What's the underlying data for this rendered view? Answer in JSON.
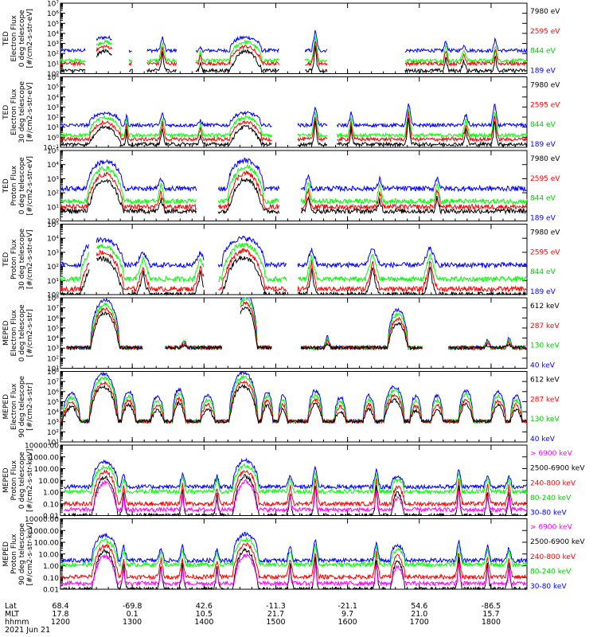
{
  "colors": {
    "blue": "#0000ff",
    "red": "#ff0000",
    "green": "#00ff00",
    "black": "#000000",
    "magenta": "#ff00ff",
    "axis": "#000000",
    "background": "#ffffff"
  },
  "footer": {
    "row_labels": [
      "Lat",
      "MLT",
      "hhmm",
      "2021 Jun 21"
    ],
    "columns": [
      {
        "lat": "68.4",
        "mlt": "17.8",
        "hhmm": "1200"
      },
      {
        "lat": "-69.8",
        "mlt": "0.1",
        "hhmm": "1300"
      },
      {
        "lat": "42.6",
        "mlt": "10.5",
        "hhmm": "1400"
      },
      {
        "lat": "-11.3",
        "mlt": "21.7",
        "hhmm": "1500"
      },
      {
        "lat": "-21.1",
        "mlt": "9.7",
        "hhmm": "1600"
      },
      {
        "lat": "54.6",
        "mlt": "21.0",
        "hhmm": "1700"
      },
      {
        "lat": "-86.5",
        "mlt": "15.7",
        "hhmm": "1800"
      }
    ]
  },
  "chart_data": [
    {
      "type": "line",
      "scale": "log",
      "ylabel": [
        "TED",
        "Electron Flux",
        "0 deg telescope",
        "[#/cm2-s-str-eV]"
      ],
      "ylim": [
        1,
        10000000
      ],
      "ytick_labels": [
        "10⁰",
        "10¹",
        "10²",
        "10³",
        "10⁴",
        "10⁵",
        "10⁶",
        "10⁷"
      ],
      "series": [
        {
          "name": "7980 eV",
          "color": "black"
        },
        {
          "name": "2595 eV",
          "color": "red"
        },
        {
          "name": "844 eV",
          "color": "green"
        },
        {
          "name": "189 eV",
          "color": "blue"
        }
      ],
      "profile": {
        "noise_floor_blue": 2.3,
        "noise_floor_green": 1.3,
        "noise_floor_red": 1.0,
        "noise_floor_black": 0.3,
        "gaps": [
          [
            0.35,
            0.5
          ],
          [
            0.72,
            0.95
          ],
          [
            1.0,
            1.2
          ],
          [
            1.62,
            1.88
          ],
          [
            3.05,
            3.4
          ],
          [
            3.72,
            4.8
          ]
        ],
        "domes": [
          [
            0.62,
            0.22,
            3.6
          ],
          [
            2.58,
            0.22,
            3.6
          ]
        ],
        "spikes": [
          [
            0.9,
            1.05,
            0.03
          ],
          [
            1.42,
            3.6,
            0.05
          ],
          [
            1.95,
            2.5,
            0.03
          ],
          [
            3.2,
            3.4,
            0.04
          ],
          [
            3.55,
            4.3,
            0.05
          ],
          [
            5.37,
            3.3,
            0.04
          ],
          [
            5.62,
            2.8,
            0.05
          ],
          [
            6.06,
            3.5,
            0.04
          ]
        ]
      }
    },
    {
      "type": "line",
      "scale": "log",
      "ylabel": [
        "TED",
        "Electron Flux",
        "30 deg telescope",
        "[#/cm2-s-str-eV]"
      ],
      "ylim": [
        0.1,
        1000000
      ],
      "ytick_labels": [
        "10⁻¹",
        "10⁰",
        "10¹",
        "10²",
        "10³",
        "10⁴",
        "10⁵",
        "10⁶"
      ],
      "series": [
        {
          "name": "7980 eV",
          "color": "black"
        },
        {
          "name": "2595 eV",
          "color": "red"
        },
        {
          "name": "844 eV",
          "color": "green"
        },
        {
          "name": "189 eV",
          "color": "blue"
        }
      ],
      "profile": {
        "noise_floor_blue": 2.2,
        "noise_floor_green": 1.2,
        "noise_floor_red": 0.8,
        "noise_floor_black": 0.3,
        "gaps": [
          [
            2.95,
            3.3
          ],
          [
            3.72,
            3.85
          ]
        ],
        "domes": [
          [
            0.62,
            0.22,
            3.4
          ],
          [
            2.58,
            0.22,
            3.4
          ]
        ],
        "spikes": [
          [
            0.92,
            3.2,
            0.03
          ],
          [
            1.42,
            3.4,
            0.05
          ],
          [
            1.95,
            2.7,
            0.04
          ],
          [
            3.18,
            4.3,
            0.05
          ],
          [
            3.55,
            4.2,
            0.05
          ],
          [
            4.05,
            3.5,
            0.04
          ],
          [
            4.85,
            4.5,
            0.05
          ],
          [
            5.65,
            3.3,
            0.05
          ],
          [
            6.05,
            4.3,
            0.05
          ]
        ]
      }
    },
    {
      "type": "line",
      "scale": "log",
      "ylabel": [
        "TED",
        "Proton Flux",
        "0 deg telescope",
        "[#/cm2-s-str-eV]"
      ],
      "ylim": [
        1,
        100000
      ],
      "ytick_labels": [
        "10⁰",
        "10¹",
        "10²",
        "10³",
        "10⁴",
        "10⁵"
      ],
      "series": [
        {
          "name": "7980 eV",
          "color": "black"
        },
        {
          "name": "2595 eV",
          "color": "red"
        },
        {
          "name": "844 eV",
          "color": "green"
        },
        {
          "name": "189 eV",
          "color": "blue"
        }
      ],
      "profile": {
        "noise_floor_blue": 2.3,
        "noise_floor_green": 1.4,
        "noise_floor_red": 1.0,
        "noise_floor_black": 0.7,
        "gaps": [
          [
            1.9,
            2.2
          ],
          [
            3.05,
            3.35
          ]
        ],
        "domes": [
          [
            0.62,
            0.25,
            4.2
          ],
          [
            2.58,
            0.25,
            4.3
          ]
        ],
        "spikes": [
          [
            1.4,
            3.1,
            0.05
          ],
          [
            3.45,
            3.3,
            0.05
          ],
          [
            4.45,
            3.0,
            0.05
          ],
          [
            5.25,
            3.2,
            0.05
          ]
        ]
      }
    },
    {
      "type": "line",
      "scale": "log",
      "ylabel": [
        "TED",
        "Proton Flux",
        "30 deg telescope",
        "[#/cm2-s-str-eV]"
      ],
      "ylim": [
        1,
        100000
      ],
      "ytick_labels": [
        "10⁰",
        "10¹",
        "10²",
        "10³",
        "10⁴",
        "10⁵"
      ],
      "series": [
        {
          "name": "7980 eV",
          "color": "black"
        },
        {
          "name": "2595 eV",
          "color": "red"
        },
        {
          "name": "844 eV",
          "color": "green"
        },
        {
          "name": "189 eV",
          "color": "blue"
        }
      ],
      "profile": {
        "noise_floor_blue": 2.1,
        "noise_floor_green": 1.1,
        "noise_floor_red": 0.4,
        "noise_floor_black": 0.0,
        "gaps": [
          [
            0.4,
            0.5
          ],
          [
            2.0,
            2.2
          ],
          [
            3.15,
            3.3
          ]
        ],
        "domes": [
          [
            0.58,
            0.3,
            3.9
          ],
          [
            2.55,
            0.3,
            4.0
          ]
        ],
        "spikes": [
          [
            1.15,
            3.0,
            0.1
          ],
          [
            1.95,
            3.0,
            0.1
          ],
          [
            3.5,
            3.2,
            0.08
          ],
          [
            4.35,
            3.4,
            0.1
          ],
          [
            5.15,
            3.4,
            0.1
          ]
        ]
      }
    },
    {
      "type": "line",
      "scale": "log",
      "ylabel": [
        "MEPED",
        "Electron Flux",
        "0 deg telescope",
        "[#/cm2-s-str]"
      ],
      "ylim": [
        10,
        100000000
      ],
      "ytick_labels": [
        "10¹",
        "10²",
        "10³",
        "10⁴",
        "10⁵",
        "10⁶",
        "10⁷",
        "10⁸"
      ],
      "series": [
        {
          "name": "612 keV",
          "color": "black"
        },
        {
          "name": "287 keV",
          "color": "red"
        },
        {
          "name": "130 keV",
          "color": "green"
        },
        {
          "name": "40 keV",
          "color": "blue"
        }
      ],
      "profile": {
        "noise_floor_blue": 2.05,
        "noise_floor_green": 2.05,
        "noise_floor_red": 2.05,
        "noise_floor_black": 2.05,
        "gaps": [
          [
            0.0,
            0.08
          ],
          [
            1.15,
            1.45
          ],
          [
            2.25,
            2.5
          ],
          [
            2.95,
            3.35
          ],
          [
            5.05,
            5.4
          ]
        ],
        "domes": [
          [
            0.62,
            0.2,
            6.8
          ],
          [
            2.58,
            0.16,
            7.4
          ],
          [
            4.7,
            0.14,
            5.8
          ]
        ],
        "spikes": [
          [
            1.72,
            2.9,
            0.05
          ],
          [
            3.72,
            3.3,
            0.05
          ],
          [
            5.95,
            2.9,
            0.05
          ],
          [
            6.25,
            3.1,
            0.05
          ]
        ]
      }
    },
    {
      "type": "line",
      "scale": "log",
      "ylabel": [
        "MEPED",
        "Electron Flux",
        "90 deg telescope",
        "[#/cm2-s-str]"
      ],
      "ylim": [
        10,
        100000000
      ],
      "ytick_labels": [
        "10¹",
        "10²",
        "10³",
        "10⁴",
        "10⁵",
        "10⁶",
        "10⁷",
        "10⁸"
      ],
      "series": [
        {
          "name": "612 keV",
          "color": "black"
        },
        {
          "name": "287 keV",
          "color": "red"
        },
        {
          "name": "130 keV",
          "color": "green"
        },
        {
          "name": "40 keV",
          "color": "blue"
        }
      ],
      "profile": {
        "noise_floor_blue": 2.05,
        "noise_floor_green": 2.05,
        "noise_floor_red": 2.05,
        "noise_floor_black": 2.05,
        "gaps": [],
        "domes": [
          [
            0.15,
            0.12,
            4.8
          ],
          [
            0.6,
            0.2,
            6.8
          ],
          [
            0.95,
            0.1,
            5.0
          ],
          [
            1.35,
            0.09,
            4.5
          ],
          [
            1.65,
            0.09,
            5.2
          ],
          [
            2.05,
            0.1,
            4.6
          ],
          [
            2.55,
            0.2,
            6.9
          ],
          [
            2.88,
            0.08,
            5.0
          ],
          [
            3.1,
            0.06,
            4.6
          ],
          [
            3.55,
            0.1,
            5.1
          ],
          [
            3.9,
            0.08,
            4.4
          ],
          [
            4.3,
            0.08,
            4.6
          ],
          [
            4.65,
            0.14,
            5.5
          ],
          [
            4.95,
            0.08,
            4.5
          ],
          [
            5.25,
            0.08,
            4.6
          ],
          [
            5.65,
            0.1,
            5.1
          ],
          [
            6.1,
            0.1,
            5.0
          ],
          [
            6.35,
            0.08,
            4.6
          ]
        ],
        "spikes": []
      }
    },
    {
      "type": "line",
      "scale": "log",
      "ylabel": [
        "MEPED",
        "Proton Flux",
        "0 deg telescope",
        "[#/cm2-s-str-keV]"
      ],
      "ylim": [
        0.01,
        10000
      ],
      "ytick_labels": [
        "0.01",
        "0.10",
        "1.00",
        "10.00",
        "100.00",
        "1000.00",
        "10000.00"
      ],
      "series": [
        {
          "name": "> 6900 keV",
          "color": "magenta"
        },
        {
          "name": "2500-6900 keV",
          "color": "black"
        },
        {
          "name": "240-800 keV",
          "color": "red"
        },
        {
          "name": "80-240 keV",
          "color": "green"
        },
        {
          "name": "30-80 keV",
          "color": "blue"
        }
      ],
      "profile": {
        "noise_floor_blue": 2.45,
        "noise_floor_green": 2.05,
        "noise_floor_red": 1.0,
        "noise_floor_black": 0.0,
        "gaps": [
          [
            0.0,
            0.04
          ]
        ],
        "domes": [
          [
            0.62,
            0.18,
            4.6
          ],
          [
            2.58,
            0.18,
            4.7
          ],
          [
            4.7,
            0.09,
            3.3
          ]
        ],
        "spikes": [
          [
            0.88,
            3.6,
            0.05
          ],
          [
            1.7,
            3.6,
            0.05
          ],
          [
            2.18,
            3.4,
            0.05
          ],
          [
            3.2,
            3.6,
            0.05
          ],
          [
            3.55,
            4.3,
            0.05
          ],
          [
            4.4,
            4.0,
            0.05
          ],
          [
            5.55,
            4.1,
            0.05
          ],
          [
            5.95,
            3.6,
            0.05
          ],
          [
            6.25,
            3.5,
            0.05
          ]
        ]
      }
    },
    {
      "type": "line",
      "scale": "log",
      "ylabel": [
        "MEPED",
        "Proton Flux",
        "90 deg telescope",
        "[#/cm2-s-str-keV]"
      ],
      "ylim": [
        0.01,
        10000
      ],
      "ytick_labels": [
        "0.01",
        "0.10",
        "1.00",
        "10.00",
        "100.00",
        "1000.00",
        "10000.00"
      ],
      "series": [
        {
          "name": "> 6900 keV",
          "color": "magenta"
        },
        {
          "name": "2500-6900 keV",
          "color": "black"
        },
        {
          "name": "240-800 keV",
          "color": "red"
        },
        {
          "name": "80-240 keV",
          "color": "green"
        },
        {
          "name": "30-80 keV",
          "color": "blue"
        }
      ],
      "profile": {
        "noise_floor_blue": 2.45,
        "noise_floor_green": 2.1,
        "noise_floor_red": 1.05,
        "noise_floor_black": 0.0,
        "gaps": [],
        "domes": [
          [
            0.62,
            0.18,
            4.6
          ],
          [
            2.58,
            0.18,
            4.7
          ],
          [
            4.7,
            0.1,
            3.7
          ]
        ],
        "spikes": [
          [
            0.88,
            3.7,
            0.05
          ],
          [
            1.4,
            3.6,
            0.05
          ],
          [
            1.7,
            3.7,
            0.05
          ],
          [
            2.18,
            3.5,
            0.05
          ],
          [
            3.2,
            3.7,
            0.05
          ],
          [
            3.55,
            4.3,
            0.05
          ],
          [
            4.4,
            4.1,
            0.05
          ],
          [
            5.55,
            4.2,
            0.05
          ],
          [
            5.95,
            3.7,
            0.05
          ],
          [
            6.25,
            3.6,
            0.05
          ]
        ]
      }
    }
  ]
}
